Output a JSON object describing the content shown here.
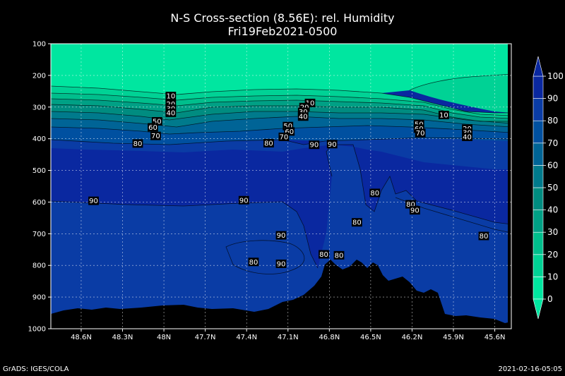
{
  "title": "N-S Cross-section (8.56E): rel. Humidity",
  "subtitle": "Fri19Feb2021-0500",
  "footer_left": "GrADS: IGES/COLA",
  "footer_right": "2021-02-16-05:05",
  "chart_data": {
    "type": "area",
    "title": "N-S Cross-section (8.56E): rel. Humidity",
    "subtitle": "Fri19Feb2021-0500",
    "x_ticks": [
      "48.6N",
      "48.3N",
      "48N",
      "47.7N",
      "47.4N",
      "47.1N",
      "46.8N",
      "46.5N",
      "46.2N",
      "45.9N",
      "45.6N"
    ],
    "x_tick_values": [
      48.6,
      48.3,
      48.0,
      47.7,
      47.4,
      47.1,
      46.8,
      46.5,
      46.2,
      45.9,
      45.6
    ],
    "xlim": [
      48.82,
      45.48
    ],
    "y_ticks": [
      100,
      200,
      300,
      400,
      500,
      600,
      700,
      800,
      900,
      1000
    ],
    "ylim": [
      100,
      1000
    ],
    "grid": true,
    "colorbar": {
      "levels": [
        0,
        10,
        20,
        30,
        40,
        50,
        60,
        70,
        80,
        90,
        100
      ],
      "colors": [
        "#00e6a0",
        "#00d295",
        "#00be8c",
        "#00a085",
        "#008c80",
        "#007a8c",
        "#006496",
        "#0050a0",
        "#0a3ca5",
        "#0a28a0"
      ]
    },
    "contour_labels": [
      {
        "lat": 47.95,
        "p": 265,
        "v": "10"
      },
      {
        "lat": 47.95,
        "p": 290,
        "v": "20"
      },
      {
        "lat": 47.95,
        "p": 305,
        "v": "30"
      },
      {
        "lat": 47.95,
        "p": 318,
        "v": "40"
      },
      {
        "lat": 48.05,
        "p": 345,
        "v": "50"
      },
      {
        "lat": 48.08,
        "p": 364,
        "v": "60"
      },
      {
        "lat": 48.06,
        "p": 391,
        "v": "70"
      },
      {
        "lat": 48.19,
        "p": 415,
        "v": "80"
      },
      {
        "lat": 46.94,
        "p": 287,
        "v": "10"
      },
      {
        "lat": 46.98,
        "p": 300,
        "v": "20"
      },
      {
        "lat": 46.99,
        "p": 315,
        "v": "30"
      },
      {
        "lat": 46.99,
        "p": 330,
        "v": "40"
      },
      {
        "lat": 47.1,
        "p": 360,
        "v": "50"
      },
      {
        "lat": 47.09,
        "p": 377,
        "v": "60"
      },
      {
        "lat": 47.13,
        "p": 394,
        "v": "70"
      },
      {
        "lat": 47.24,
        "p": 414,
        "v": "80"
      },
      {
        "lat": 46.91,
        "p": 419,
        "v": "90"
      },
      {
        "lat": 46.78,
        "p": 417,
        "v": "90"
      },
      {
        "lat": 45.97,
        "p": 325,
        "v": "10"
      },
      {
        "lat": 45.8,
        "p": 368,
        "v": "20"
      },
      {
        "lat": 45.8,
        "p": 381,
        "v": "30"
      },
      {
        "lat": 45.8,
        "p": 394,
        "v": "40"
      },
      {
        "lat": 46.15,
        "p": 354,
        "v": "50"
      },
      {
        "lat": 46.15,
        "p": 368,
        "v": "60"
      },
      {
        "lat": 46.14,
        "p": 382,
        "v": "70"
      },
      {
        "lat": 48.51,
        "p": 596,
        "v": "90"
      },
      {
        "lat": 47.42,
        "p": 594,
        "v": "90"
      },
      {
        "lat": 46.47,
        "p": 571,
        "v": "80"
      },
      {
        "lat": 46.21,
        "p": 607,
        "v": "80"
      },
      {
        "lat": 46.18,
        "p": 626,
        "v": "90"
      },
      {
        "lat": 46.6,
        "p": 664,
        "v": "80"
      },
      {
        "lat": 45.68,
        "p": 707,
        "v": "80"
      },
      {
        "lat": 47.15,
        "p": 705,
        "v": "90"
      },
      {
        "lat": 47.35,
        "p": 789,
        "v": "80"
      },
      {
        "lat": 47.15,
        "p": 795,
        "v": "90"
      },
      {
        "lat": 46.84,
        "p": 765,
        "v": "80"
      },
      {
        "lat": 46.73,
        "p": 768,
        "v": "80"
      }
    ]
  }
}
